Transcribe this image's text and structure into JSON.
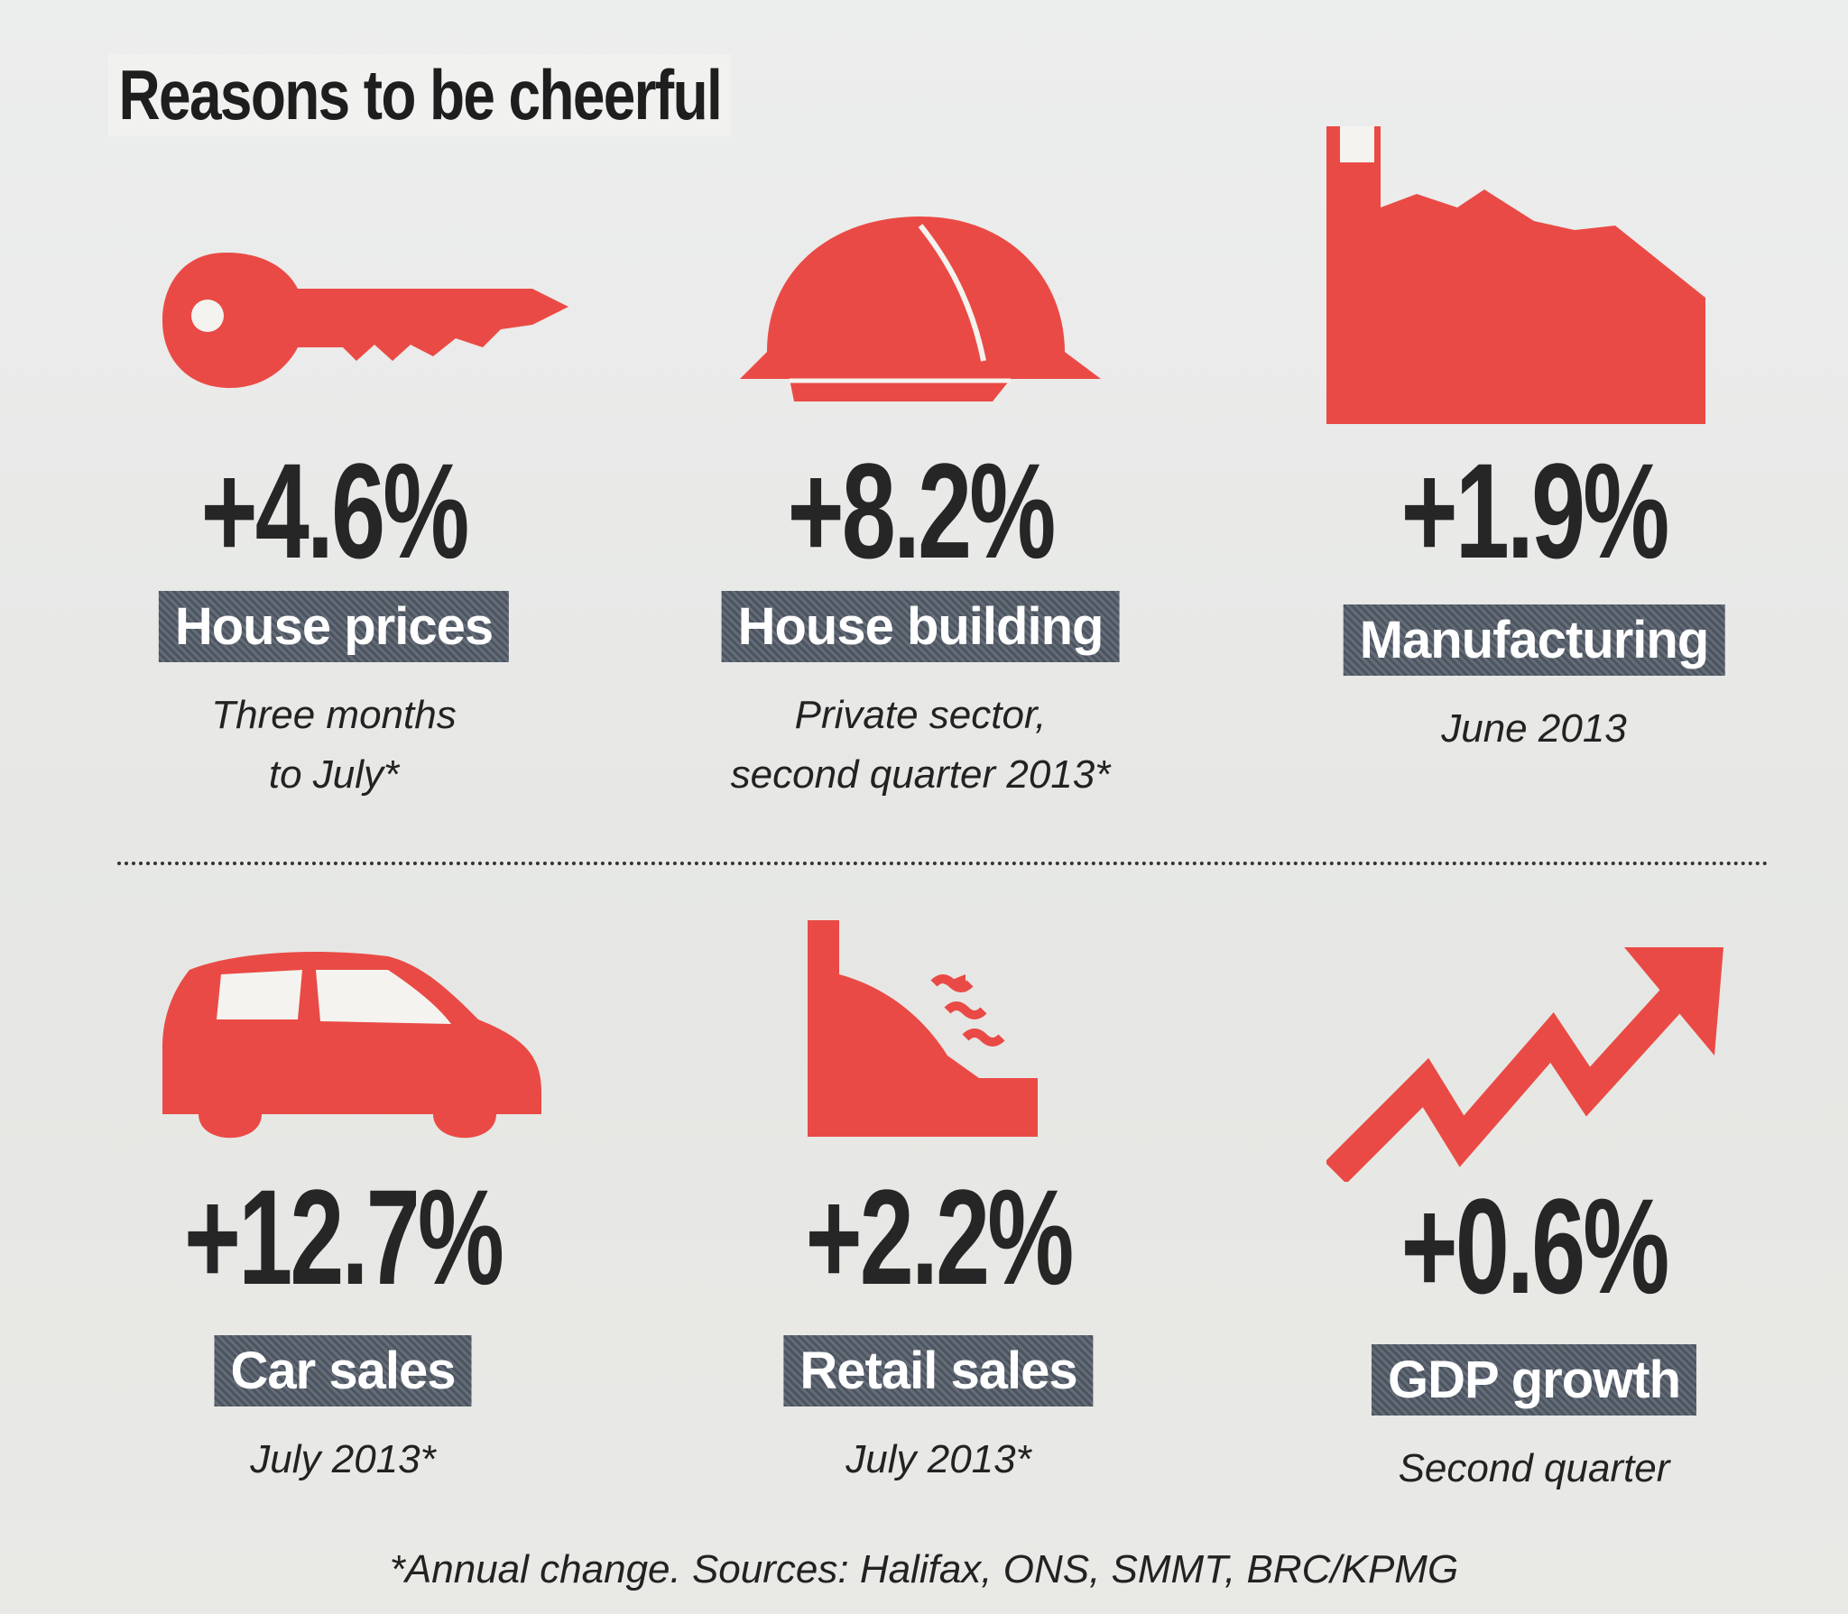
{
  "title": "Reasons to be cheerful",
  "stats": [
    {
      "value": "+4.6%",
      "label": "House prices",
      "note_line1": "Three months",
      "note_line2": "to July*",
      "icon": "key-icon"
    },
    {
      "value": "+8.2%",
      "label": "House building",
      "note_line1": "Private sector,",
      "note_line2": "second quarter 2013*",
      "icon": "hard-hat-icon"
    },
    {
      "value": "+1.9%",
      "label": "Manufacturing",
      "note_line1": "June 2013",
      "note_line2": "",
      "icon": "factory-icon"
    },
    {
      "value": "+12.7%",
      "label": "Car sales",
      "note_line1": "July 2013*",
      "note_line2": "",
      "icon": "car-icon"
    },
    {
      "value": "+2.2%",
      "label": "Retail sales",
      "note_line1": "July 2013*",
      "note_line2": "",
      "icon": "cash-register-icon"
    },
    {
      "value": "+0.6%",
      "label": "GDP growth",
      "note_line1": "Second quarter",
      "note_line2": "",
      "icon": "trend-arrow-icon"
    }
  ],
  "footer": "*Annual change. Sources: Halifax, ONS, SMMT, BRC/KPMG",
  "colors": {
    "icon_red": "#ea4a45",
    "label_bg": "#5a626e",
    "text": "#222222"
  }
}
